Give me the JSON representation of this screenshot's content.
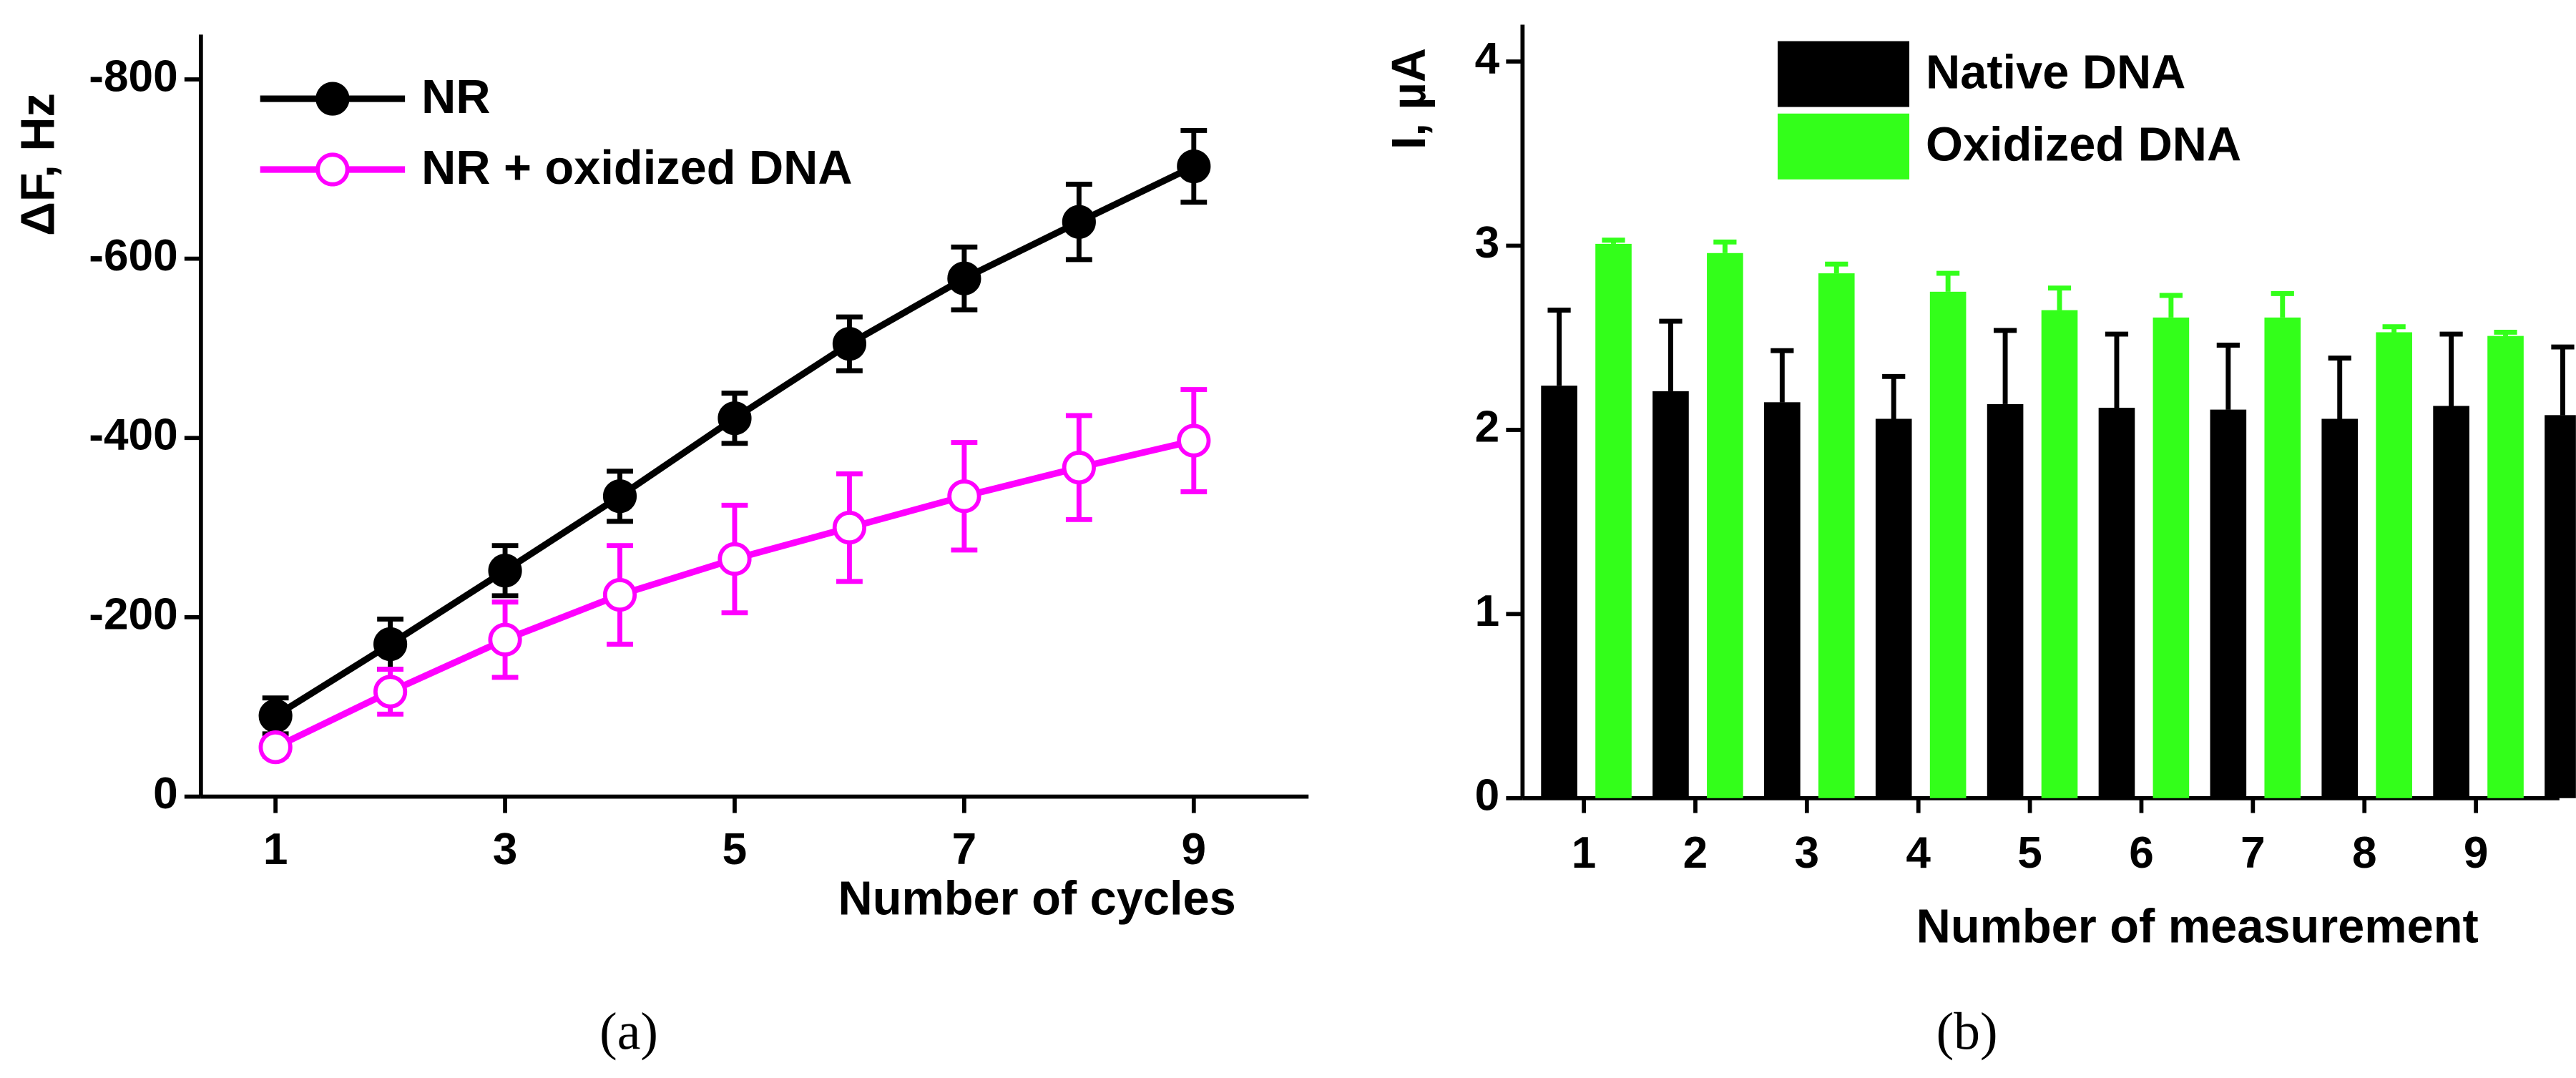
{
  "chart_data": [
    {
      "type": "line",
      "x": [
        1,
        2,
        3,
        4,
        5,
        6,
        7,
        8,
        9
      ],
      "xlim": [
        0.35,
        10
      ],
      "xticks": [
        1,
        3,
        5,
        7,
        9
      ],
      "ylim": [
        0,
        -850
      ],
      "yticks": [
        0,
        -200,
        -400,
        -600,
        -800
      ],
      "xlabel": "Number of cycles",
      "ylabel": "ΔF, Hz",
      "legend": "upper left",
      "series": [
        {
          "name": "NR",
          "color": "#000000",
          "marker": "filled",
          "values": [
            -90,
            -170,
            -252,
            -335,
            -422,
            -505,
            -578,
            -641,
            -703
          ],
          "errors": [
            20,
            28,
            28,
            28,
            28,
            30,
            35,
            42,
            40
          ]
        },
        {
          "name": "NR + oxidized DNA",
          "color": "#ff00ff",
          "marker": "open",
          "values": [
            -55,
            -117,
            -175,
            -225,
            -265,
            -300,
            -335,
            -367,
            -397
          ],
          "errors": [
            10,
            25,
            42,
            55,
            60,
            60,
            60,
            58,
            57
          ]
        }
      ]
    },
    {
      "type": "bar",
      "categories": [
        "1",
        "2",
        "3",
        "4",
        "5",
        "6",
        "7",
        "8",
        "9",
        null
      ],
      "ylim": [
        0,
        4.2
      ],
      "yticks": [
        0,
        1,
        2,
        3,
        4
      ],
      "xlabel": "Number of measurement",
      "ylabel": "I, µA",
      "legend": "upper center",
      "series": [
        {
          "name": "Native DNA",
          "color": "#000000",
          "values": [
            2.24,
            2.21,
            2.15,
            2.06,
            2.14,
            2.12,
            2.11,
            2.06,
            2.13,
            2.08
          ],
          "errors": [
            0.41,
            0.38,
            0.28,
            0.23,
            0.4,
            0.4,
            0.35,
            0.33,
            0.39,
            0.37
          ]
        },
        {
          "name": "Oxidized DNA",
          "color": "#33ff1a",
          "values": [
            3.01,
            2.96,
            2.85,
            2.75,
            2.65,
            2.61,
            2.61,
            2.53,
            2.51,
            null
          ],
          "errors": [
            0.02,
            0.06,
            0.05,
            0.1,
            0.12,
            0.12,
            0.13,
            0.03,
            0.02,
            null
          ]
        }
      ]
    }
  ],
  "captions": [
    "(a)",
    "(b)"
  ]
}
